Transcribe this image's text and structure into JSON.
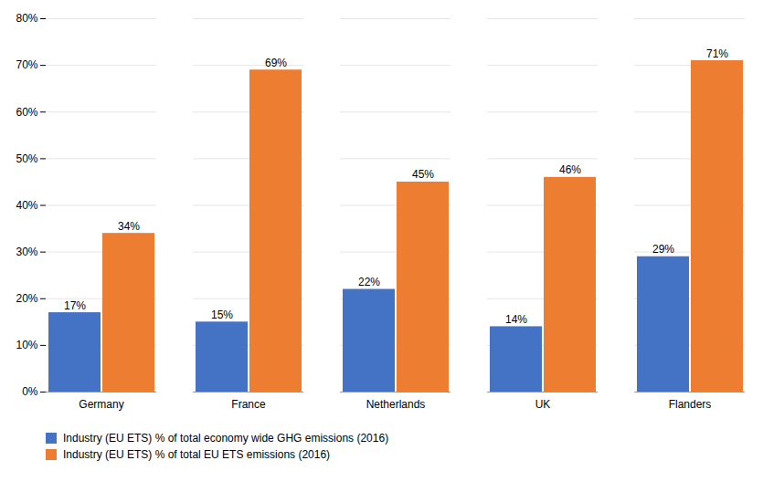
{
  "chart_data": {
    "type": "bar",
    "categories": [
      "Germany",
      "France",
      "Netherlands",
      "UK",
      "Flanders"
    ],
    "series": [
      {
        "name": "Industry (EU ETS) % of total economy wide GHG emissions (2016)",
        "color": "#4472C4",
        "values": [
          0.17,
          0.15,
          0.22,
          0.14,
          0.29
        ],
        "value_labels": [
          "17%",
          "15%",
          "22%",
          "14%",
          "29%"
        ]
      },
      {
        "name": "Industry (EU ETS) % of total EU ETS emissions (2016)",
        "color": "#ED7D31",
        "values": [
          0.34,
          0.69,
          0.45,
          0.46,
          0.71
        ],
        "value_labels": [
          "34%",
          "69%",
          "45%",
          "46%",
          "71%"
        ]
      }
    ],
    "ylim": [
      0,
      0.8
    ],
    "yticks": [
      {
        "value": 0.0,
        "label": "0%"
      },
      {
        "value": 0.1,
        "label": "10%"
      },
      {
        "value": 0.2,
        "label": "20%"
      },
      {
        "value": 0.3,
        "label": "30%"
      },
      {
        "value": 0.4,
        "label": "40%"
      },
      {
        "value": 0.5,
        "label": "50%"
      },
      {
        "value": 0.6,
        "label": "60%"
      },
      {
        "value": 0.7,
        "label": "70%"
      },
      {
        "value": 0.8,
        "label": "80%"
      }
    ],
    "grid": true,
    "data_labels": true,
    "legend": "bottom"
  }
}
